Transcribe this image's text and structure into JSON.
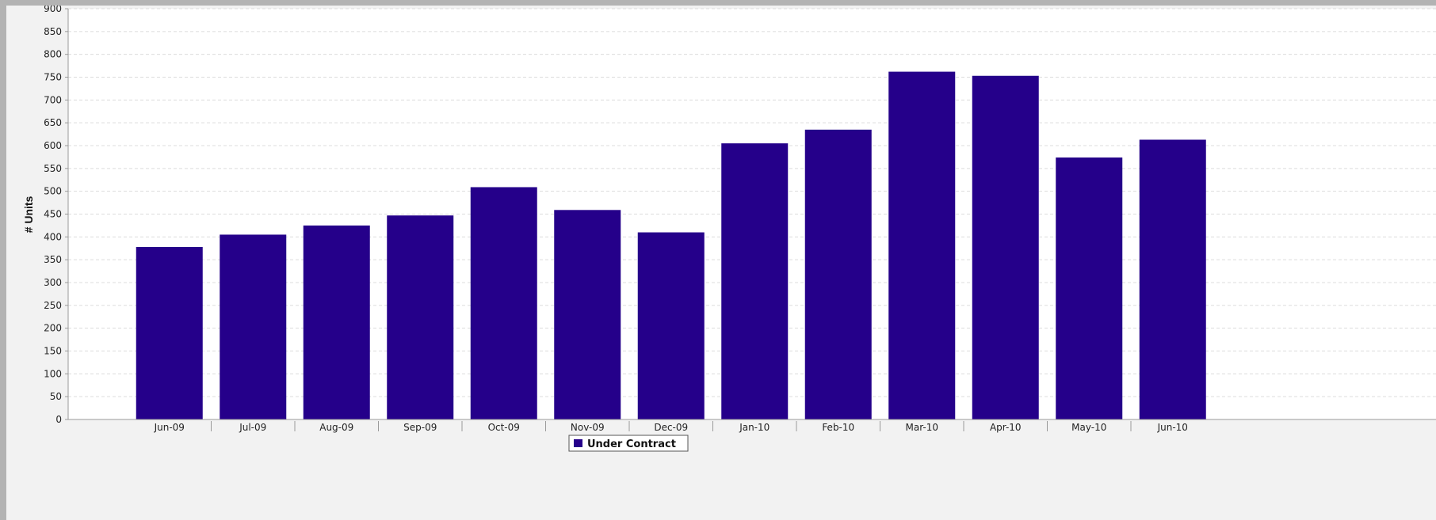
{
  "chart_data": {
    "type": "bar",
    "title": "",
    "xlabel": "",
    "ylabel": "# Units",
    "categories": [
      "Jun-09",
      "Jul-09",
      "Aug-09",
      "Sep-09",
      "Oct-09",
      "Nov-09",
      "Dec-09",
      "Jan-10",
      "Feb-10",
      "Mar-10",
      "Apr-10",
      "May-10",
      "Jun-10"
    ],
    "series": [
      {
        "name": "Under Contract",
        "color": "#25008a",
        "values": [
          378,
          405,
          425,
          447,
          509,
          459,
          410,
          605,
          635,
          762,
          753,
          574,
          613
        ]
      }
    ],
    "ylim": [
      0,
      900
    ],
    "yticks": [
      0,
      50,
      100,
      150,
      200,
      250,
      300,
      350,
      400,
      450,
      500,
      550,
      600,
      650,
      700,
      750,
      800,
      850,
      900
    ],
    "grid": true,
    "legend_position": "bottom-center"
  }
}
